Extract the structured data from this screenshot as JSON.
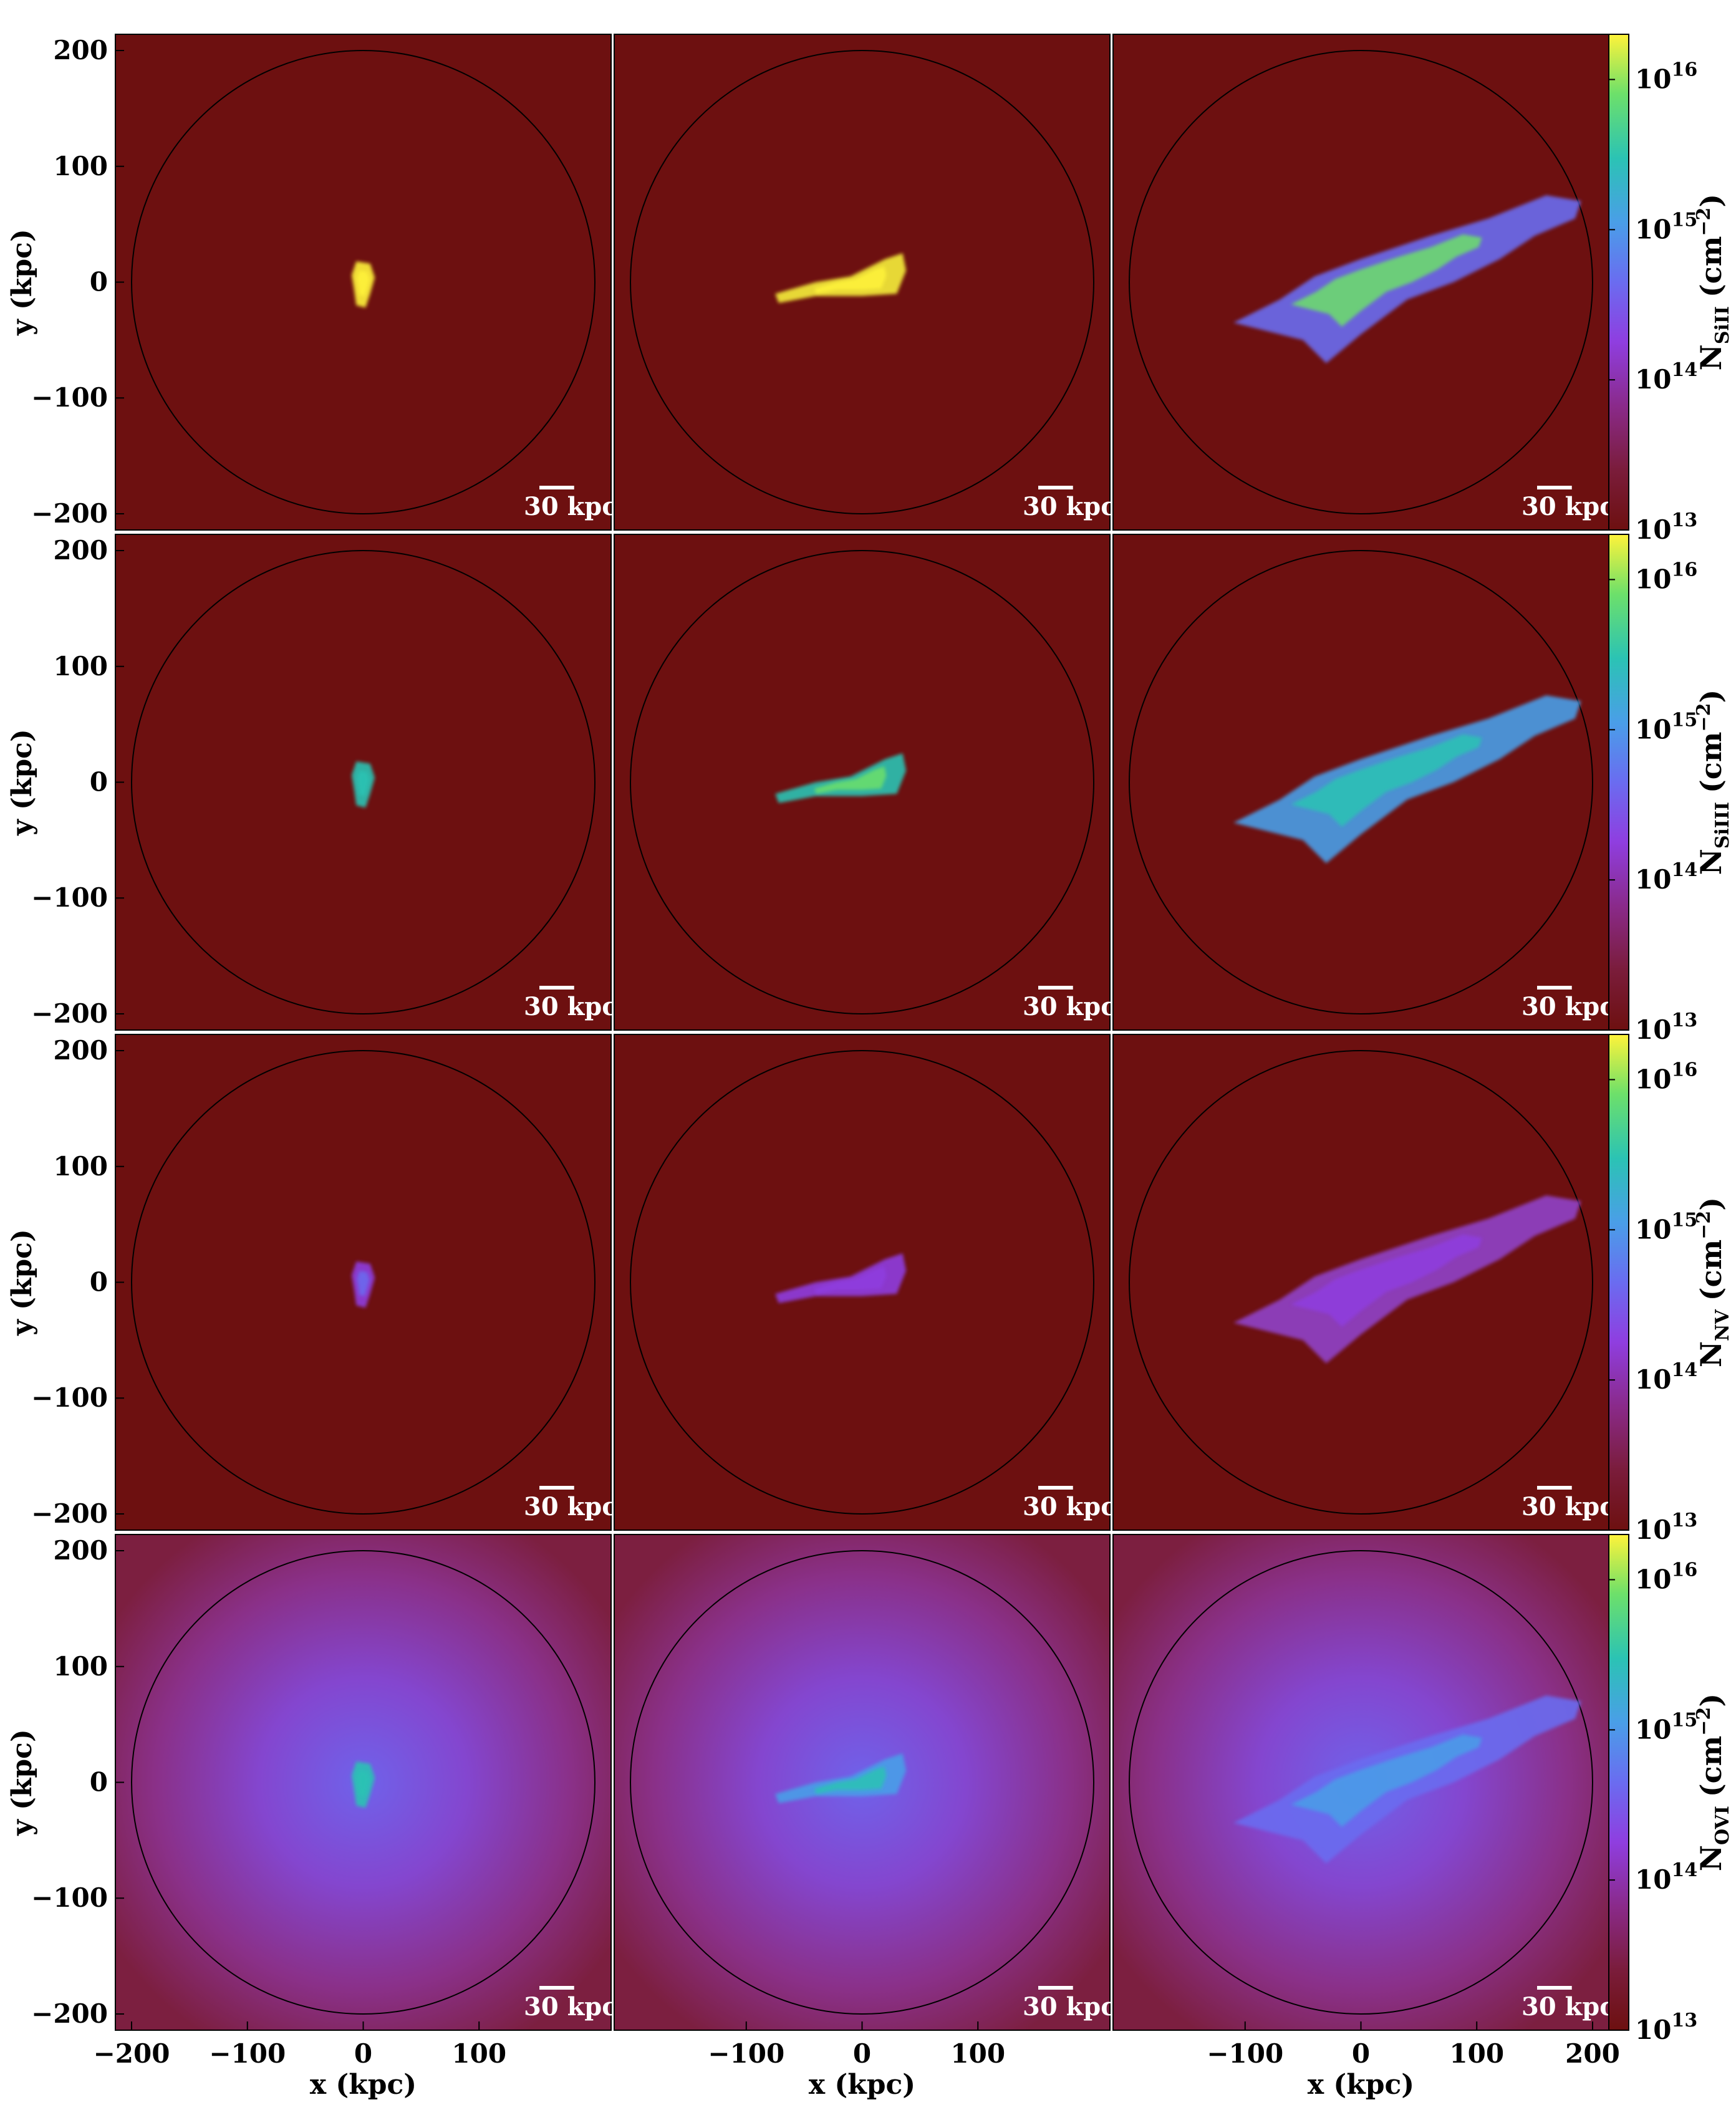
{
  "chart_data": {
    "type": "heatmap",
    "description_grid": "4x3 panel grid of ion column-density maps",
    "x_axis": {
      "label": "x (kpc)",
      "range": [
        -215,
        215
      ],
      "ticks_first_col": [
        "−200",
        "−100",
        "0",
        "100"
      ],
      "ticks_mid_col": [
        "−100",
        "0",
        "100"
      ],
      "ticks_last_col": [
        "−100",
        "0",
        "100",
        "200"
      ]
    },
    "y_axis": {
      "label": "y (kpc)",
      "range": [
        -215,
        215
      ],
      "ticks": [
        "200",
        "100",
        "0",
        "−100",
        "−200"
      ]
    },
    "scale_bar": {
      "label": "30 kpc",
      "length_kpc": 30
    },
    "colorbar": {
      "scale": "log",
      "range": [
        10000000000000.0,
        2e+16
      ],
      "tick_bases": [
        "10",
        "10",
        "10",
        "10"
      ],
      "tick_exponents": [
        "16",
        "15",
        "14",
        "13"
      ],
      "unit_base": "(cm",
      "unit_exp": "−2",
      "unit_close": ")",
      "colors": [
        "#6d1010",
        "#7a1c3a",
        "#8a2a8a",
        "#8f3ee0",
        "#6a6cf0",
        "#4a9ee8",
        "#2bc3b4",
        "#6de06a",
        "#fff33a"
      ]
    },
    "rows": [
      {
        "ion": "SiII",
        "sym": "N",
        "sub": "SiII",
        "background_level": 10000000000000.0
      },
      {
        "ion": "SiIII",
        "sym": "N",
        "sub": "SiIII",
        "background_level": 10000000000000.0
      },
      {
        "ion": "NV",
        "sym": "N",
        "sub": "NV",
        "background_level": 10000000000000.0
      },
      {
        "ion": "OVI",
        "sym": "N",
        "sub": "OVI",
        "background_level": 50000000000000.0
      }
    ]
  }
}
